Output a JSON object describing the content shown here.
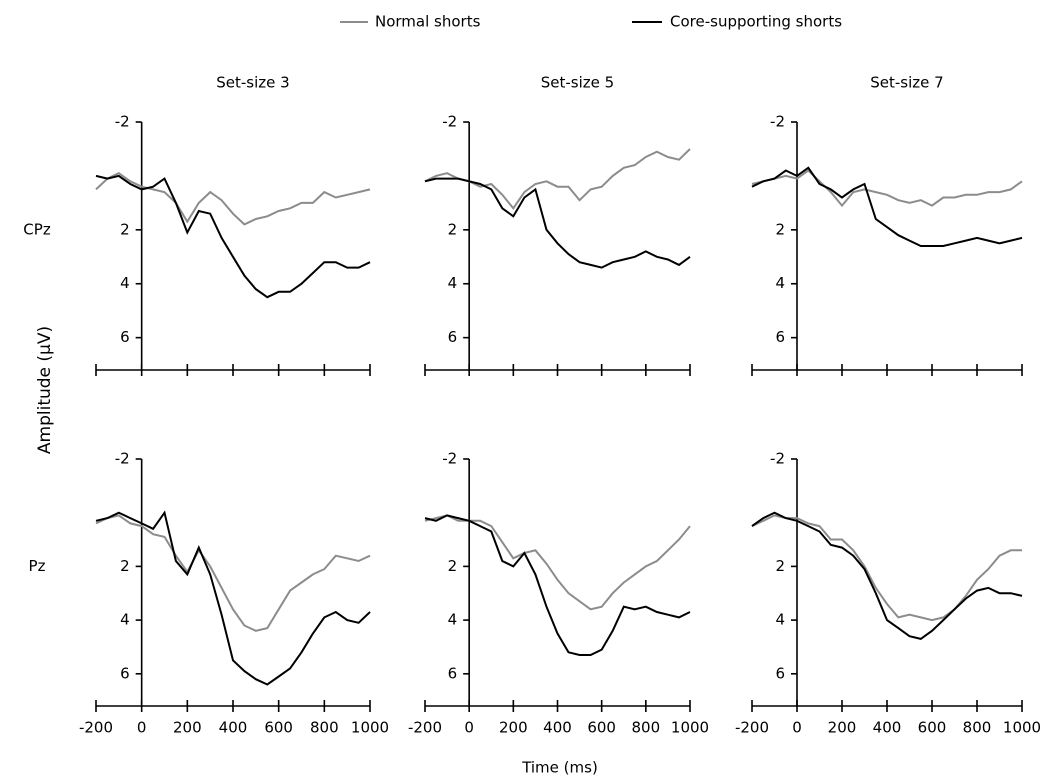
{
  "figure": {
    "ylabel": "Amplitude (µV)",
    "xlabel": "Time (ms)"
  },
  "chart_data": [
    {
      "type": "line",
      "title": "Set-size 3",
      "row_label": "CPz",
      "show_xtick_labels": false,
      "y_inverted": true,
      "x": [
        -200,
        -150,
        -100,
        -50,
        0,
        50,
        100,
        150,
        200,
        250,
        300,
        350,
        400,
        450,
        500,
        550,
        600,
        650,
        700,
        750,
        800,
        850,
        900,
        950,
        1000
      ],
      "xlim": [
        -200,
        1000
      ],
      "xticks": [
        -200,
        0,
        200,
        400,
        600,
        800,
        1000
      ],
      "ylim": [
        -2,
        7.2
      ],
      "yticks": [
        -2,
        2,
        4,
        6
      ],
      "series": [
        {
          "name": "Normal shorts",
          "color": "#8c8c8c",
          "values": [
            0.5,
            0.1,
            -0.1,
            0.2,
            0.4,
            0.5,
            0.6,
            1.0,
            1.7,
            1.0,
            0.6,
            0.9,
            1.4,
            1.8,
            1.6,
            1.5,
            1.3,
            1.2,
            1.0,
            1.0,
            0.6,
            0.8,
            0.7,
            0.6,
            0.5
          ]
        },
        {
          "name": "Core-supporting shorts",
          "color": "#000000",
          "values": [
            0.0,
            0.1,
            0.0,
            0.3,
            0.5,
            0.4,
            0.1,
            1.0,
            2.1,
            1.3,
            1.4,
            2.3,
            3.0,
            3.7,
            4.2,
            4.5,
            4.3,
            4.3,
            4.0,
            3.6,
            3.2,
            3.2,
            3.4,
            3.4,
            3.2
          ]
        }
      ]
    },
    {
      "type": "line",
      "title": "Set-size 5",
      "show_xtick_labels": false,
      "y_inverted": true,
      "x": [
        -200,
        -150,
        -100,
        -50,
        0,
        50,
        100,
        150,
        200,
        250,
        300,
        350,
        400,
        450,
        500,
        550,
        600,
        650,
        700,
        750,
        800,
        850,
        900,
        950,
        1000
      ],
      "xlim": [
        -200,
        1000
      ],
      "xticks": [
        -200,
        0,
        200,
        400,
        600,
        800,
        1000
      ],
      "ylim": [
        -2,
        7.2
      ],
      "yticks": [
        -2,
        2,
        4,
        6
      ],
      "series": [
        {
          "name": "Normal shorts",
          "color": "#8c8c8c",
          "values": [
            0.2,
            0.0,
            -0.1,
            0.1,
            0.2,
            0.4,
            0.3,
            0.7,
            1.2,
            0.6,
            0.3,
            0.2,
            0.4,
            0.4,
            0.9,
            0.5,
            0.4,
            0.0,
            -0.3,
            -0.4,
            -0.7,
            -0.9,
            -0.7,
            -0.6,
            -1.0
          ]
        },
        {
          "name": "Core-supporting shorts",
          "color": "#000000",
          "values": [
            0.2,
            0.1,
            0.1,
            0.1,
            0.2,
            0.3,
            0.5,
            1.2,
            1.5,
            0.8,
            0.5,
            2.0,
            2.5,
            2.9,
            3.2,
            3.3,
            3.4,
            3.2,
            3.1,
            3.0,
            2.8,
            3.0,
            3.1,
            3.3,
            3.0
          ]
        }
      ]
    },
    {
      "type": "line",
      "title": "Set-size 7",
      "show_xtick_labels": false,
      "y_inverted": true,
      "x": [
        -200,
        -150,
        -100,
        -50,
        0,
        50,
        100,
        150,
        200,
        250,
        300,
        350,
        400,
        450,
        500,
        550,
        600,
        650,
        700,
        750,
        800,
        850,
        900,
        950,
        1000
      ],
      "xlim": [
        -200,
        1000
      ],
      "xticks": [
        -200,
        0,
        200,
        400,
        600,
        800,
        1000
      ],
      "ylim": [
        -2,
        7.2
      ],
      "yticks": [
        -2,
        2,
        4,
        6
      ],
      "series": [
        {
          "name": "Normal shorts",
          "color": "#8c8c8c",
          "values": [
            0.3,
            0.2,
            0.1,
            0.0,
            0.1,
            -0.2,
            0.2,
            0.6,
            1.1,
            0.6,
            0.5,
            0.6,
            0.7,
            0.9,
            1.0,
            0.9,
            1.1,
            0.8,
            0.8,
            0.7,
            0.7,
            0.6,
            0.6,
            0.5,
            0.2
          ]
        },
        {
          "name": "Core-supporting shorts",
          "color": "#000000",
          "values": [
            0.4,
            0.2,
            0.1,
            -0.2,
            0.0,
            -0.3,
            0.3,
            0.5,
            0.8,
            0.5,
            0.3,
            1.6,
            1.9,
            2.2,
            2.4,
            2.6,
            2.6,
            2.6,
            2.5,
            2.4,
            2.3,
            2.4,
            2.5,
            2.4,
            2.3
          ]
        }
      ]
    },
    {
      "type": "line",
      "row_label": "Pz",
      "show_xtick_labels": true,
      "y_inverted": true,
      "x": [
        -200,
        -150,
        -100,
        -50,
        0,
        50,
        100,
        150,
        200,
        250,
        300,
        350,
        400,
        450,
        500,
        550,
        600,
        650,
        700,
        750,
        800,
        850,
        900,
        950,
        1000
      ],
      "xlim": [
        -200,
        1000
      ],
      "xticks": [
        -200,
        0,
        200,
        400,
        600,
        800,
        1000
      ],
      "ylim": [
        -2,
        7.2
      ],
      "yticks": [
        -2,
        2,
        4,
        6
      ],
      "series": [
        {
          "name": "Normal shorts",
          "color": "#8c8c8c",
          "values": [
            0.4,
            0.2,
            0.1,
            0.4,
            0.5,
            0.8,
            0.9,
            1.6,
            2.2,
            1.4,
            2.0,
            2.8,
            3.6,
            4.2,
            4.4,
            4.3,
            3.6,
            2.9,
            2.6,
            2.3,
            2.1,
            1.6,
            1.7,
            1.8,
            1.6
          ]
        },
        {
          "name": "Core-supporting shorts",
          "color": "#000000",
          "values": [
            0.3,
            0.2,
            0.0,
            0.2,
            0.4,
            0.6,
            0.0,
            1.8,
            2.3,
            1.3,
            2.3,
            3.8,
            5.5,
            5.9,
            6.2,
            6.4,
            6.1,
            5.8,
            5.2,
            4.5,
            3.9,
            3.7,
            4.0,
            4.1,
            3.7
          ]
        }
      ]
    },
    {
      "type": "line",
      "show_xtick_labels": true,
      "y_inverted": true,
      "x": [
        -200,
        -150,
        -100,
        -50,
        0,
        50,
        100,
        150,
        200,
        250,
        300,
        350,
        400,
        450,
        500,
        550,
        600,
        650,
        700,
        750,
        800,
        850,
        900,
        950,
        1000
      ],
      "xlim": [
        -200,
        1000
      ],
      "xticks": [
        -200,
        0,
        200,
        400,
        600,
        800,
        1000
      ],
      "ylim": [
        -2,
        7.2
      ],
      "yticks": [
        -2,
        2,
        4,
        6
      ],
      "series": [
        {
          "name": "Normal shorts",
          "color": "#8c8c8c",
          "values": [
            0.3,
            0.2,
            0.1,
            0.3,
            0.3,
            0.3,
            0.5,
            1.1,
            1.7,
            1.5,
            1.4,
            1.9,
            2.5,
            3.0,
            3.3,
            3.6,
            3.5,
            3.0,
            2.6,
            2.3,
            2.0,
            1.8,
            1.4,
            1.0,
            0.5
          ]
        },
        {
          "name": "Core-supporting shorts",
          "color": "#000000",
          "values": [
            0.2,
            0.3,
            0.1,
            0.2,
            0.3,
            0.5,
            0.7,
            1.8,
            2.0,
            1.5,
            2.3,
            3.5,
            4.5,
            5.2,
            5.3,
            5.3,
            5.1,
            4.4,
            3.5,
            3.6,
            3.5,
            3.7,
            3.8,
            3.9,
            3.7
          ]
        }
      ]
    },
    {
      "type": "line",
      "show_xtick_labels": true,
      "y_inverted": true,
      "x": [
        -200,
        -150,
        -100,
        -50,
        0,
        50,
        100,
        150,
        200,
        250,
        300,
        350,
        400,
        450,
        500,
        550,
        600,
        650,
        700,
        750,
        800,
        850,
        900,
        950,
        1000
      ],
      "xlim": [
        -200,
        1000
      ],
      "xticks": [
        -200,
        0,
        200,
        400,
        600,
        800,
        1000
      ],
      "ylim": [
        -2,
        7.2
      ],
      "yticks": [
        -2,
        2,
        4,
        6
      ],
      "series": [
        {
          "name": "Normal shorts",
          "color": "#8c8c8c",
          "values": [
            0.5,
            0.3,
            0.1,
            0.2,
            0.2,
            0.4,
            0.5,
            1.0,
            1.0,
            1.4,
            2.0,
            2.8,
            3.4,
            3.9,
            3.8,
            3.9,
            4.0,
            3.9,
            3.6,
            3.1,
            2.5,
            2.1,
            1.6,
            1.4,
            1.4
          ]
        },
        {
          "name": "Core-supporting shorts",
          "color": "#000000",
          "values": [
            0.5,
            0.2,
            0.0,
            0.2,
            0.3,
            0.5,
            0.7,
            1.2,
            1.3,
            1.6,
            2.1,
            3.0,
            4.0,
            4.3,
            4.6,
            4.7,
            4.4,
            4.0,
            3.6,
            3.2,
            2.9,
            2.8,
            3.0,
            3.0,
            3.1
          ]
        }
      ]
    }
  ]
}
